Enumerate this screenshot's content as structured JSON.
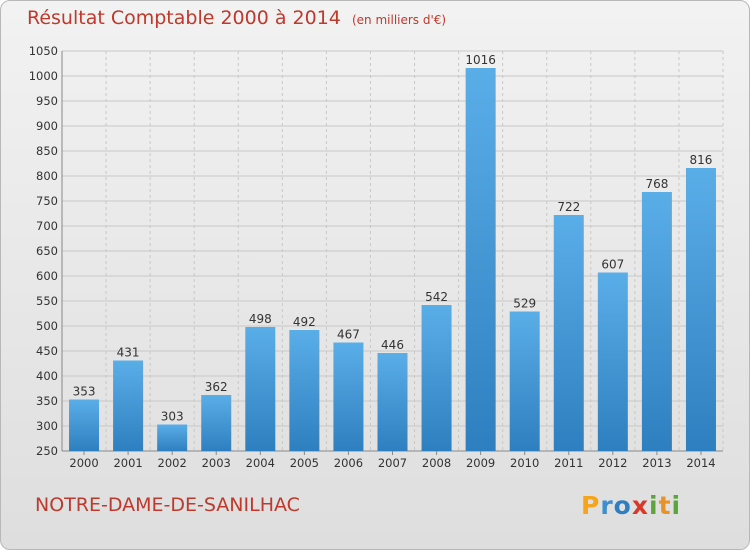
{
  "header": {
    "title": "Résultat Comptable 2000 à 2014",
    "subtitle": "(en milliers d'€)"
  },
  "footer": {
    "place": "NOTRE-DAME-DE-SANILHAC",
    "logo": [
      "P",
      "r",
      "o",
      "x",
      "i",
      "t",
      "i"
    ]
  },
  "chart_data": {
    "type": "bar",
    "title": "Résultat Comptable 2000 à 2014",
    "subtitle": "(en milliers d'€)",
    "xlabel": "",
    "ylabel": "",
    "categories": [
      "2000",
      "2001",
      "2002",
      "2003",
      "2004",
      "2005",
      "2006",
      "2007",
      "2008",
      "2009",
      "2010",
      "2011",
      "2012",
      "2013",
      "2014"
    ],
    "values": [
      353,
      431,
      303,
      362,
      498,
      492,
      467,
      446,
      542,
      1016,
      529,
      722,
      607,
      768,
      816
    ],
    "ylim": [
      250,
      1050
    ],
    "yticks": [
      250,
      300,
      350,
      400,
      450,
      500,
      550,
      600,
      650,
      700,
      750,
      800,
      850,
      900,
      950,
      1000,
      1050
    ],
    "grid": true,
    "colors": {
      "bar_light": "#5aaee8",
      "bar_dark": "#2e7fbf",
      "grid": "#c8c8c8",
      "text": "#333333",
      "title": "#c0392b"
    }
  }
}
